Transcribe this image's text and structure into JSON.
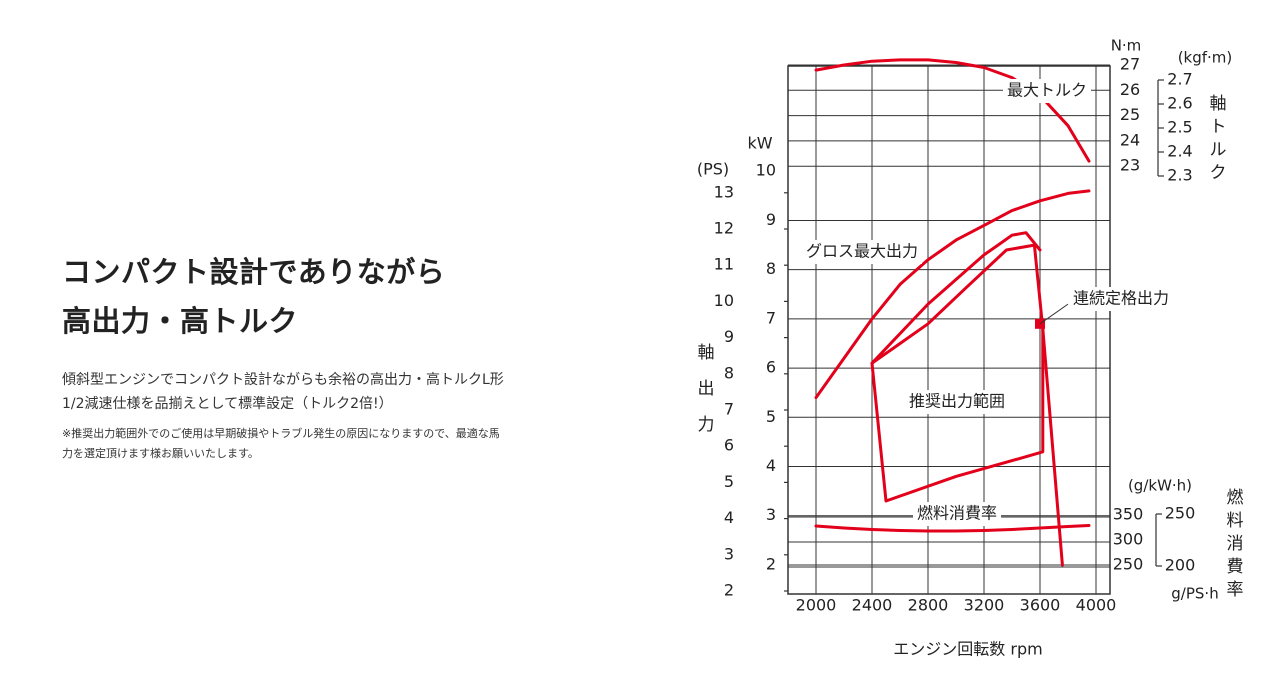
{
  "left": {
    "heading_line1": "コンパクト設計でありながら",
    "heading_line2": "高出力・高トルク",
    "desc_line1": "傾斜型エンジンでコンパクト設計ながらも余裕の高出力・高トルクL形",
    "desc_line2": "1/2減速仕様を品揃えとして標準設定（トルク2倍!）",
    "note_line1": "※推奨出力範囲外でのご使用は早期破損やトラブル発生の原因になりますので、最適な馬",
    "note_line2": "力を選定頂けます様お願いいたします。"
  },
  "chart_data": {
    "type": "line",
    "x": {
      "label": "エンジン回転数 rpm",
      "ticks": [
        2000,
        2400,
        2800,
        3200,
        3600,
        4000
      ],
      "range": [
        1800,
        4100
      ]
    },
    "power_axis": {
      "label": "軸出力",
      "ps_unit": "(PS)",
      "kw_unit": "kW",
      "ps_ticks": [
        2,
        3,
        4,
        5,
        6,
        7,
        8,
        9,
        10,
        11,
        12,
        13
      ],
      "kw_ticks": [
        2,
        3,
        4,
        5,
        6,
        7,
        8,
        9,
        10
      ]
    },
    "torque_axis": {
      "label": "軸トルク",
      "nm_unit": "N·m",
      "kgf_unit": "(kgf·m)",
      "nm_ticks": [
        23,
        24,
        25,
        26,
        27
      ],
      "kgf_ticks": [
        "2.7",
        "2.6",
        "2.5",
        "2.4",
        "2.3"
      ]
    },
    "fuel_axis": {
      "label": "燃料消費率",
      "gkwh_unit": "(g/kW·h)",
      "gpsh_unit": "g/PS·h",
      "gkwh_ticks": [
        350,
        300,
        250
      ],
      "gps_ticks": [
        250,
        200
      ]
    },
    "series": [
      {
        "name": "最大トルク",
        "unit": "N·m",
        "x": [
          2000,
          2200,
          2400,
          2600,
          2800,
          3000,
          3200,
          3400,
          3600,
          3800,
          3950
        ],
        "y": [
          26.8,
          27.0,
          27.15,
          27.2,
          27.2,
          27.1,
          26.9,
          26.5,
          25.8,
          24.6,
          23.2
        ]
      },
      {
        "name": "グロス最大出力",
        "unit": "kW",
        "x": [
          2000,
          2200,
          2400,
          2600,
          2800,
          3000,
          3200,
          3400,
          3600,
          3800,
          3950
        ],
        "y": [
          5.4,
          6.2,
          7.0,
          7.7,
          8.2,
          8.6,
          8.9,
          9.2,
          9.4,
          9.55,
          9.6
        ]
      },
      {
        "name": "連続定格出力",
        "unit": "kW",
        "x": [
          2400,
          2600,
          2800,
          3000,
          3200,
          3300,
          3400,
          3500,
          3600
        ],
        "y": [
          6.1,
          6.7,
          7.3,
          7.8,
          8.3,
          8.5,
          8.7,
          8.75,
          8.4
        ]
      },
      {
        "name": "燃料消費率",
        "unit": "g/kW·h",
        "x": [
          2000,
          2200,
          2400,
          2600,
          2800,
          3000,
          3200,
          3400,
          3600,
          3800,
          3950
        ],
        "y": [
          332,
          328,
          325,
          323,
          322,
          322,
          323,
          325,
          328,
          331,
          333
        ]
      }
    ],
    "recommended_range": {
      "name": "推奨出力範囲",
      "x": [
        2400,
        2500,
        3000,
        3500,
        3620,
        3620,
        3560,
        3360,
        3060,
        2800,
        2400
      ],
      "y": [
        6.1,
        3.3,
        3.8,
        4.2,
        4.3,
        6.8,
        8.5,
        8.4,
        7.6,
        6.9,
        6.1
      ]
    },
    "marker": {
      "name": "連続定格出力",
      "x": 3600,
      "y": 6.9
    },
    "annotations": {
      "max_torque": "最大トルク",
      "gross_power": "グロス最大出力",
      "rated_power": "連続定格出力",
      "recommended": "推奨出力範囲",
      "fuel": "燃料消費率"
    },
    "colors": {
      "curve": "#e3001b",
      "grid": "#333333"
    }
  }
}
